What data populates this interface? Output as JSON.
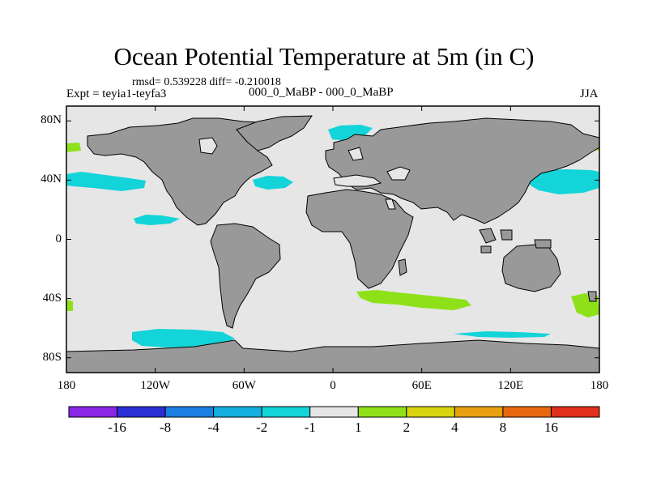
{
  "title": "Ocean Potential Temperature at 5m (in C)",
  "stats_text": "rmsd= 0.539228 diff= -0.210018",
  "experiment_text": "Expt = teyia1-teyfa3",
  "case_text": "000_0_MaBP - 000_0_MaBP",
  "season": "JJA",
  "colors": {
    "land": "#999999",
    "ocean_neutral": "#e6e6e6",
    "anom_minus2_to_minus1": "#13d4d8",
    "anom_1_to_2": "#8ee118"
  },
  "lat_axis": {
    "labels": [
      "80N",
      "40N",
      "0",
      "40S",
      "80S"
    ],
    "values": [
      80,
      40,
      0,
      -40,
      -80
    ],
    "range": [
      -90,
      90
    ]
  },
  "lon_axis": {
    "labels": [
      "180",
      "120W",
      "60W",
      "0",
      "60E",
      "120E",
      "180"
    ],
    "values": [
      -180,
      -120,
      -60,
      0,
      60,
      120,
      180
    ],
    "range": [
      -180,
      180
    ]
  },
  "colorbar": {
    "colors": [
      "#8a26e6",
      "#2a2fd5",
      "#1a7fe0",
      "#14aee0",
      "#13d4d8",
      "#e6e6e6",
      "#8ee118",
      "#d8d40e",
      "#e8a010",
      "#e8680f",
      "#e0301c"
    ],
    "labels": [
      "-16",
      "-8",
      "-4",
      "-2",
      "-1",
      "1",
      "2",
      "4",
      "8",
      "16"
    ]
  }
}
